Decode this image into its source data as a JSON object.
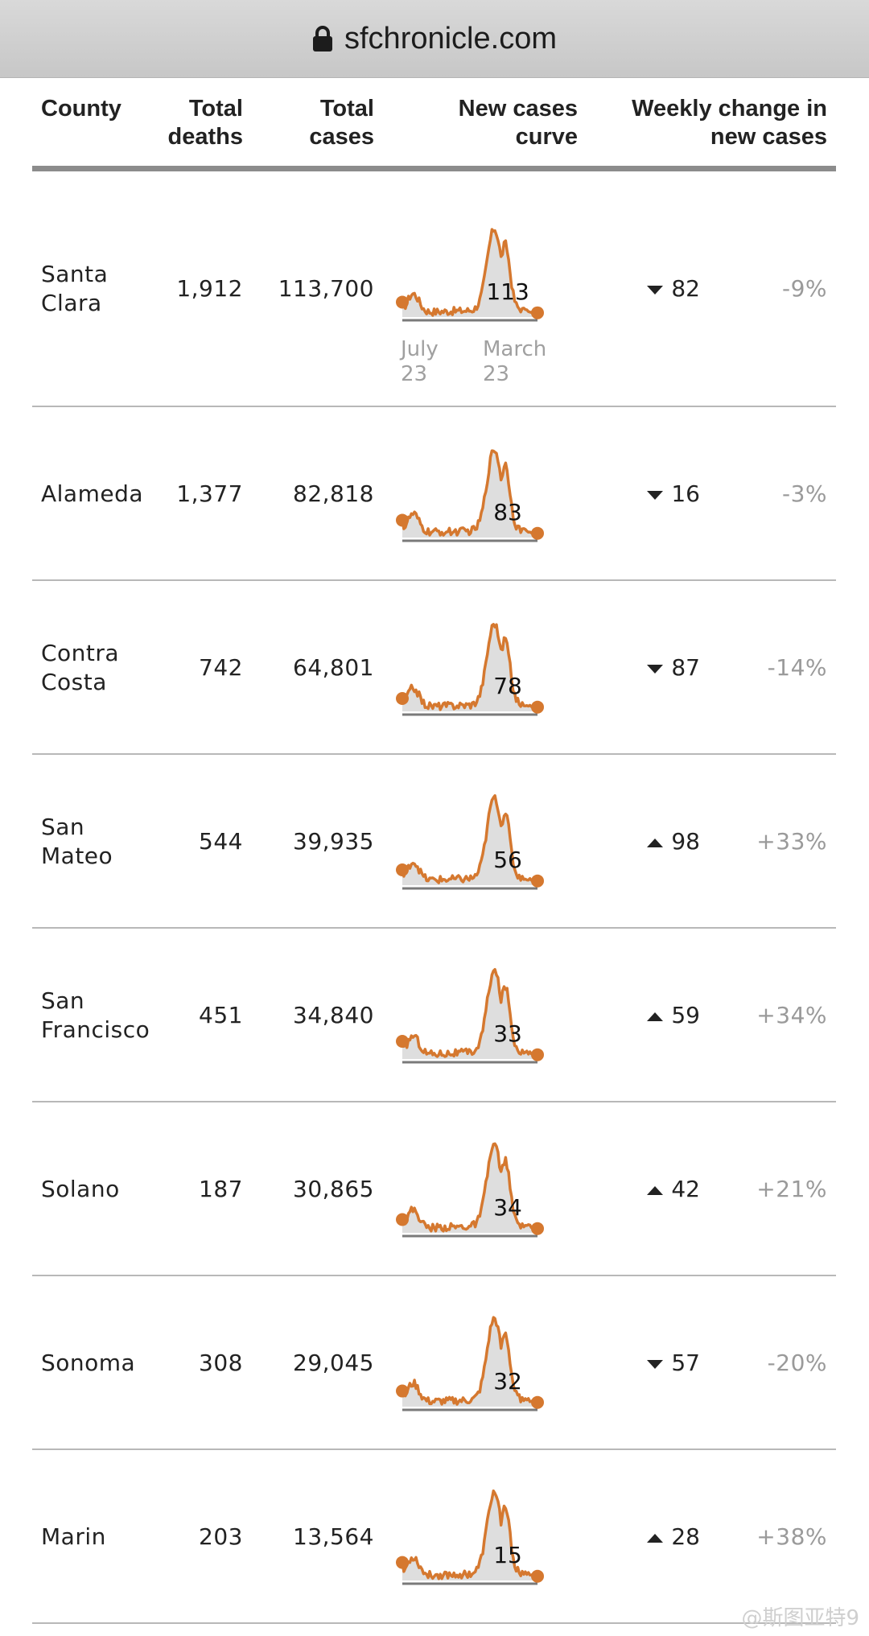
{
  "browser": {
    "url": "sfchronicle.com"
  },
  "table": {
    "headers": {
      "county": "County",
      "deaths_1": "Total",
      "deaths_2": "deaths",
      "cases_1": "Total",
      "cases_2": "cases",
      "curve_1": "New cases",
      "curve_2": "curve",
      "weekly_1": "Weekly change in",
      "weekly_2": "new cases"
    },
    "axis_labels": {
      "start_1": "July",
      "start_2": "23",
      "end_1": "March",
      "end_2": "23"
    },
    "rows": [
      {
        "county_1": "Santa",
        "county_2": "Clara",
        "deaths": "1,912",
        "cases": "113,700",
        "curve_label": "113",
        "change_dir": "down",
        "change_value": "82",
        "change_pct": "-9%"
      },
      {
        "county_1": "Alameda",
        "county_2": "",
        "deaths": "1,377",
        "cases": "82,818",
        "curve_label": "83",
        "change_dir": "down",
        "change_value": "16",
        "change_pct": "-3%"
      },
      {
        "county_1": "Contra",
        "county_2": "Costa",
        "deaths": "742",
        "cases": "64,801",
        "curve_label": "78",
        "change_dir": "down",
        "change_value": "87",
        "change_pct": "-14%"
      },
      {
        "county_1": "San",
        "county_2": "Mateo",
        "deaths": "544",
        "cases": "39,935",
        "curve_label": "56",
        "change_dir": "up",
        "change_value": "98",
        "change_pct": "+33%"
      },
      {
        "county_1": "San",
        "county_2": "Francisco",
        "deaths": "451",
        "cases": "34,840",
        "curve_label": "33",
        "change_dir": "up",
        "change_value": "59",
        "change_pct": "+34%"
      },
      {
        "county_1": "Solano",
        "county_2": "",
        "deaths": "187",
        "cases": "30,865",
        "curve_label": "34",
        "change_dir": "up",
        "change_value": "42",
        "change_pct": "+21%"
      },
      {
        "county_1": "Sonoma",
        "county_2": "",
        "deaths": "308",
        "cases": "29,045",
        "curve_label": "32",
        "change_dir": "down",
        "change_value": "57",
        "change_pct": "-20%"
      },
      {
        "county_1": "Marin",
        "county_2": "",
        "deaths": "203",
        "cases": "13,564",
        "curve_label": "15",
        "change_dir": "up",
        "change_value": "28",
        "change_pct": "+38%"
      }
    ]
  },
  "colors": {
    "curve": "#d5782f",
    "fill": "#dedede",
    "baseline": "#7a7a7a",
    "down_up_arrow": "#222222"
  },
  "watermark": "@斯图亚特9"
}
